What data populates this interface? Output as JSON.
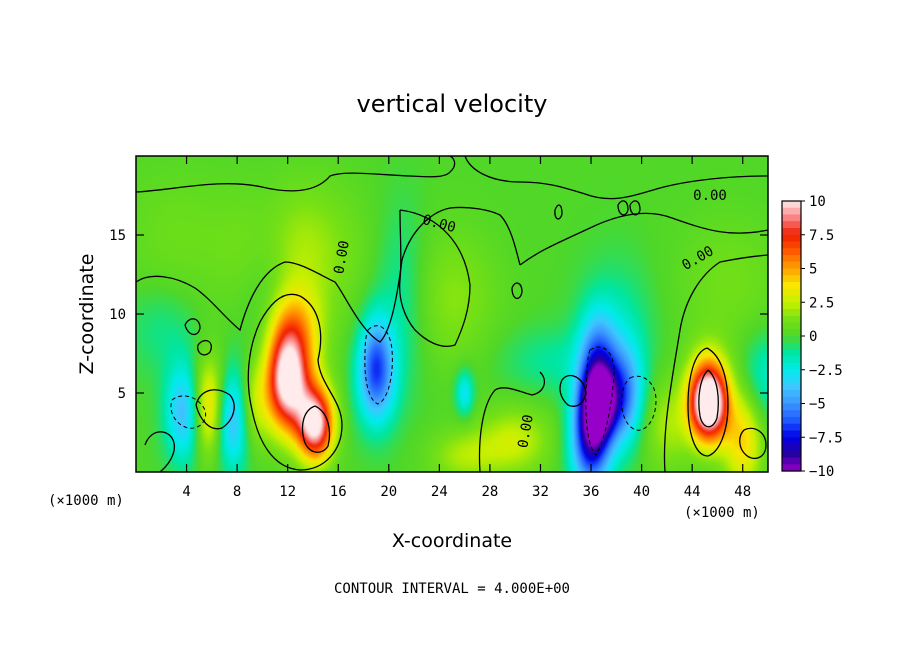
{
  "chart_data": {
    "type": "heatmap",
    "title": "vertical velocity",
    "xlabel": "X-coordinate",
    "ylabel": "Z-coordinate",
    "x_unit_note": "(×1000 m)",
    "y_unit_note": "(×1000 m)",
    "footer": "CONTOUR INTERVAL = 4.000E+00",
    "xlim": [
      0,
      50
    ],
    "ylim": [
      0,
      20
    ],
    "x_ticks": [
      4,
      8,
      12,
      16,
      20,
      24,
      28,
      32,
      36,
      40,
      44,
      48
    ],
    "y_ticks": [
      5,
      10,
      15
    ],
    "colorbar": {
      "min": -10,
      "max": 10,
      "ticks": [
        10,
        7.5,
        5,
        2.5,
        0,
        -2.5,
        -5,
        -7.5,
        -10
      ],
      "tick_labels": [
        "10",
        "7.5",
        "5",
        "2.5",
        "0",
        "−2.5",
        "−5",
        "−7.5",
        "−10"
      ]
    },
    "contour_labels": [
      "0.00",
      "0.00",
      "0.00",
      "0.00",
      "0.00"
    ],
    "features": [
      {
        "x": 12.0,
        "z": 6.0,
        "peak": 8.5
      },
      {
        "x": 14.2,
        "z": 3.0,
        "peak": 10.0
      },
      {
        "x": 45.3,
        "z": 4.3,
        "peak": 10.0
      },
      {
        "x": 5.8,
        "z": 4.0,
        "peak": 6.0
      },
      {
        "x": 36.6,
        "z": 4.5,
        "peak": -9.0
      },
      {
        "x": 36.0,
        "z": 2.0,
        "peak": -8.0
      },
      {
        "x": 19.0,
        "z": 6.0,
        "peak": -5.0
      },
      {
        "x": 7.6,
        "z": 3.5,
        "peak": -6.0
      },
      {
        "x": 4.0,
        "z": 3.8,
        "peak": -5.0
      },
      {
        "x": 38.6,
        "z": 4.8,
        "peak": -5.0
      },
      {
        "x": 48.0,
        "z": 2.0,
        "peak": 4.0
      }
    ],
    "grid": false,
    "legend_placement": "right"
  }
}
